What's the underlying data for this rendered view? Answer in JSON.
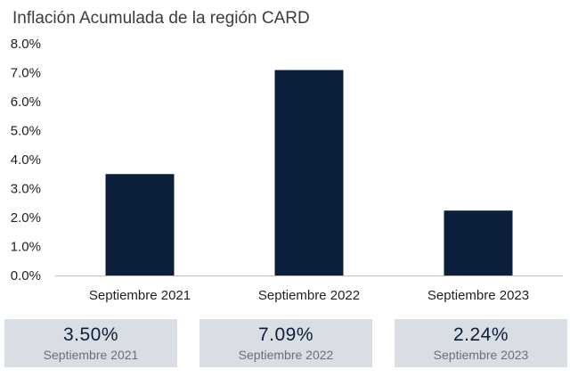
{
  "chart_data": {
    "type": "bar",
    "title": "Inflación Acumulada de la región CARD",
    "xlabel": "",
    "ylabel": "",
    "categories": [
      "Septiembre 2021",
      "Septiembre 2022",
      "Septiembre 2023"
    ],
    "values": [
      3.5,
      7.09,
      2.24
    ],
    "ylim": [
      0,
      8
    ],
    "yticks": [
      "0.0%",
      "1.0%",
      "2.0%",
      "3.0%",
      "4.0%",
      "5.0%",
      "6.0%",
      "7.0%",
      "8.0%"
    ],
    "bar_color": "#0b1f3a",
    "grid": false,
    "legend": "none"
  },
  "summary": [
    {
      "value": "3.50%",
      "label": "Septiembre 2021"
    },
    {
      "value": "7.09%",
      "label": "Septiembre 2022"
    },
    {
      "value": "2.24%",
      "label": "Septiembre 2023"
    }
  ],
  "colors": {
    "bar": "#0b1f3a",
    "summary_bg": "#d9dde4",
    "axis": "#bfbfbf"
  }
}
